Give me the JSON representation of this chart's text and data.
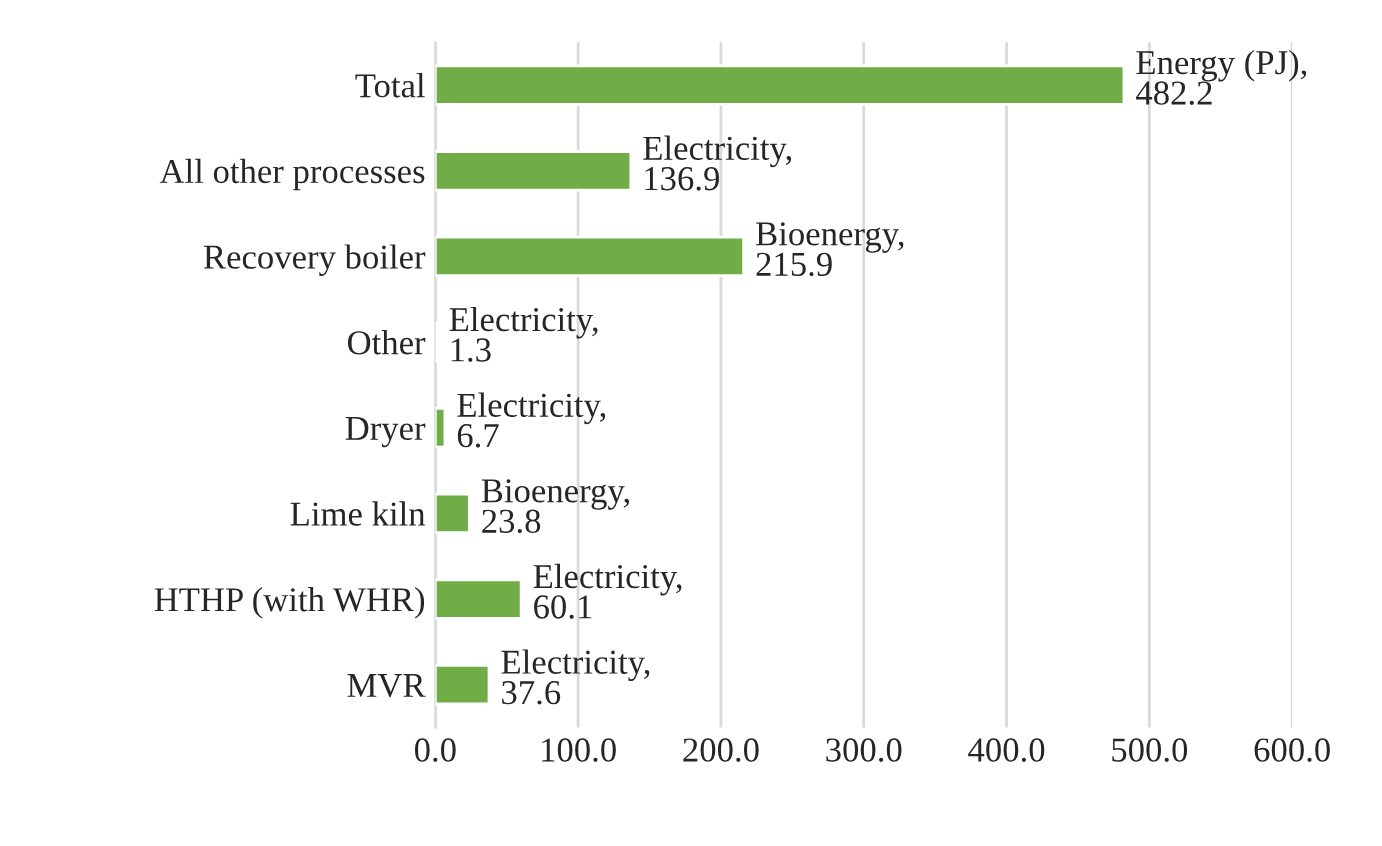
{
  "chart_data": {
    "type": "bar",
    "orientation": "horizontal",
    "categories": [
      "Total",
      "All other processes",
      "Recovery boiler",
      "Other",
      "Dryer",
      "Lime kiln",
      "HTHP (with WHR)",
      "MVR"
    ],
    "values": [
      482.2,
      136.9,
      215.9,
      1.3,
      6.7,
      23.8,
      60.1,
      37.6
    ],
    "value_labels": [
      "Energy (PJ),\n482.2",
      "Electricity,\n136.9",
      "Bioenergy,\n215.9",
      "Electricity,\n1.3",
      "Electricity,\n6.7",
      "Bioenergy,\n23.8",
      "Electricity,\n60.1",
      "Electricity,\n37.6"
    ],
    "color": "#70ad47",
    "xlim": [
      0,
      600
    ],
    "xticks": [
      {
        "value": 0,
        "label": "0.0"
      },
      {
        "value": 100,
        "label": "100.0"
      },
      {
        "value": 200,
        "label": "200.0"
      },
      {
        "value": 300,
        "label": "300.0"
      },
      {
        "value": 400,
        "label": "400.0"
      },
      {
        "value": 500,
        "label": "500.0"
      },
      {
        "value": 600,
        "label": "600.0"
      }
    ],
    "grid": "x",
    "legend": false
  }
}
